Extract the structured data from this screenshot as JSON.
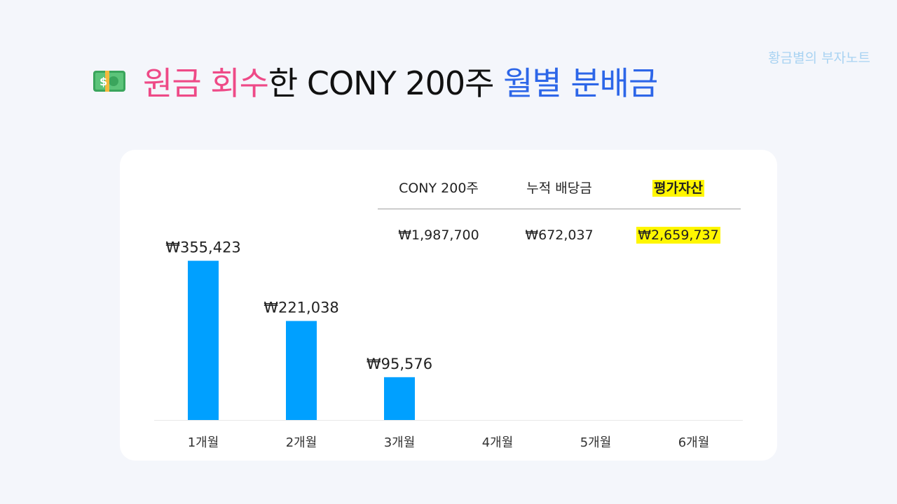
{
  "watermark": "황금별의 부자노트",
  "title": {
    "icon": "money-bill-icon",
    "part1": "원금 회수",
    "part2": "한 CONY 200주 ",
    "part3": "월별 분배금",
    "colors": {
      "pink": "#ee4a87",
      "blue": "#2d66e8",
      "dark": "#111111"
    }
  },
  "summary": {
    "headers": [
      "CONY 200주",
      "누적 배당금",
      "평가자산"
    ],
    "values": [
      "₩1,987,700",
      "₩672,037",
      "₩2,659,737"
    ]
  },
  "chart_data": {
    "type": "bar",
    "categories": [
      "1개월",
      "2개월",
      "3개월",
      "4개월",
      "5개월",
      "6개월"
    ],
    "values": [
      355423,
      221038,
      95576,
      null,
      null,
      null
    ],
    "labels": [
      "₩355,423",
      "₩221,038",
      "₩95,576",
      "",
      "",
      ""
    ],
    "ylim": [
      0,
      400000
    ],
    "bar_color": "#00a0ff",
    "grid": false,
    "legend": "none"
  }
}
